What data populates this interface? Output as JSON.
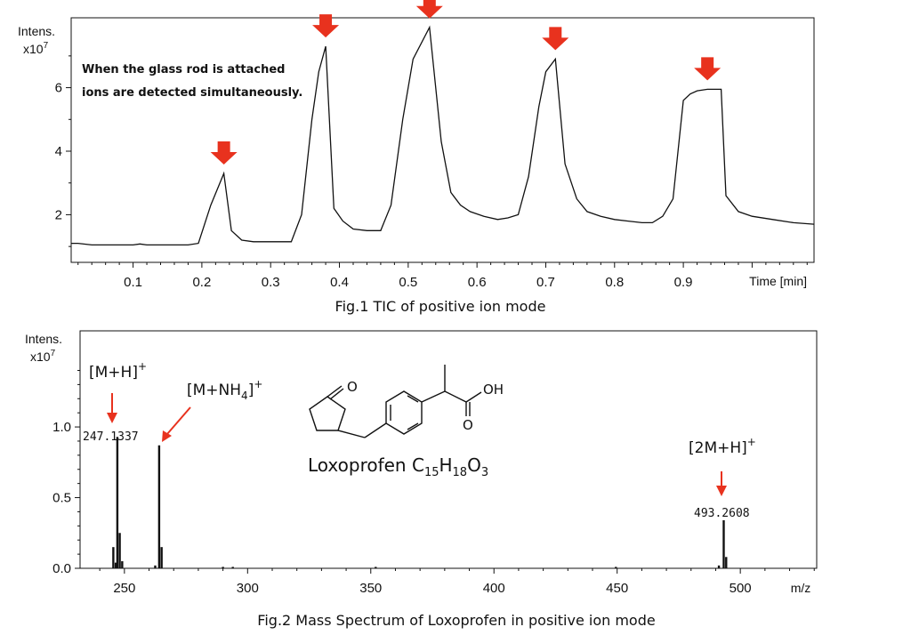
{
  "colors": {
    "marker": "#e8321e",
    "trace": "#111111"
  },
  "chart_data": [
    {
      "type": "line",
      "title": "Fig.1 TIC of positive ion mode",
      "ylabel_line1": "Intens.",
      "ylabel_line2": "x10",
      "ylabel_exp": "7",
      "xlabel": "Time [min]",
      "xlim": [
        0.01,
        1.09
      ],
      "ylim": [
        0.5,
        8.2
      ],
      "xticks": [
        0.1,
        0.2,
        0.3,
        0.4,
        0.5,
        0.6,
        0.7,
        0.8,
        0.9
      ],
      "yticks": [
        2,
        4,
        6
      ],
      "annotation_line1": "When the glass rod is attached",
      "annotation_line2": "ions are detected simultaneously.",
      "marker_peaks_x": [
        0.232,
        0.38,
        0.531,
        0.714,
        0.935
      ],
      "marker_peaks_y": [
        3.3,
        7.3,
        7.9,
        6.9,
        5.95
      ],
      "x": [
        0.01,
        0.02,
        0.04,
        0.06,
        0.08,
        0.1,
        0.11,
        0.12,
        0.14,
        0.16,
        0.18,
        0.195,
        0.213,
        0.232,
        0.243,
        0.258,
        0.275,
        0.295,
        0.315,
        0.33,
        0.345,
        0.36,
        0.37,
        0.38,
        0.392,
        0.405,
        0.42,
        0.44,
        0.46,
        0.475,
        0.492,
        0.507,
        0.531,
        0.548,
        0.562,
        0.576,
        0.59,
        0.61,
        0.63,
        0.645,
        0.66,
        0.675,
        0.69,
        0.7,
        0.714,
        0.728,
        0.745,
        0.76,
        0.78,
        0.8,
        0.82,
        0.84,
        0.855,
        0.87,
        0.885,
        0.9,
        0.91,
        0.92,
        0.935,
        0.955,
        0.962,
        0.98,
        1.0,
        1.03,
        1.06,
        1.09
      ],
      "values": [
        1.1,
        1.1,
        1.05,
        1.05,
        1.05,
        1.05,
        1.08,
        1.05,
        1.05,
        1.05,
        1.05,
        1.1,
        2.3,
        3.3,
        1.5,
        1.2,
        1.15,
        1.15,
        1.15,
        1.15,
        2.0,
        5.0,
        6.5,
        7.3,
        2.2,
        1.8,
        1.55,
        1.5,
        1.5,
        2.3,
        5.0,
        6.9,
        7.9,
        4.3,
        2.7,
        2.3,
        2.1,
        1.95,
        1.85,
        1.9,
        2.0,
        3.2,
        5.4,
        6.5,
        6.9,
        3.6,
        2.5,
        2.1,
        1.95,
        1.85,
        1.8,
        1.75,
        1.75,
        1.95,
        2.5,
        5.6,
        5.8,
        5.9,
        5.95,
        5.95,
        2.6,
        2.1,
        1.95,
        1.85,
        1.75,
        1.7
      ]
    },
    {
      "type": "bar",
      "title": "Fig.2 Mass Spectrum of Loxoprofen in positive ion mode",
      "ylabel_line1": "Intens.",
      "ylabel_line2": "x10",
      "ylabel_exp": "7",
      "xlabel": "m/z",
      "xlim": [
        232,
        531
      ],
      "ylim": [
        0,
        1.68
      ],
      "xticks": [
        250,
        300,
        350,
        400,
        450,
        500
      ],
      "yticks": [
        0.0,
        0.5,
        1.0
      ],
      "ytick_labels": [
        "0.0",
        "0.5",
        "1.0"
      ],
      "compound_name": "Loxoprofen C",
      "formula_c": "15",
      "formula_h_part": "H",
      "formula_h": "18",
      "formula_o_part": "O",
      "formula_o": "3",
      "peak_labels": [
        "247.1337",
        "493.2608"
      ],
      "ion_labels": [
        "[M+H]",
        "[M+NH",
        "4",
        "]",
        "[2M+H]"
      ],
      "ion_charge": "+",
      "structure_atoms": [
        "O",
        "OH",
        "O"
      ],
      "x": [
        245.5,
        246.5,
        247.13,
        248.1,
        249.1,
        262.5,
        264.1,
        265.1,
        290,
        294,
        352,
        449.5,
        491.3,
        493.26,
        494.26
      ],
      "values": [
        0.15,
        0.04,
        0.93,
        0.25,
        0.05,
        0.02,
        0.87,
        0.15,
        0.01,
        0.01,
        0.01,
        0.01,
        0.02,
        0.34,
        0.08
      ]
    }
  ]
}
